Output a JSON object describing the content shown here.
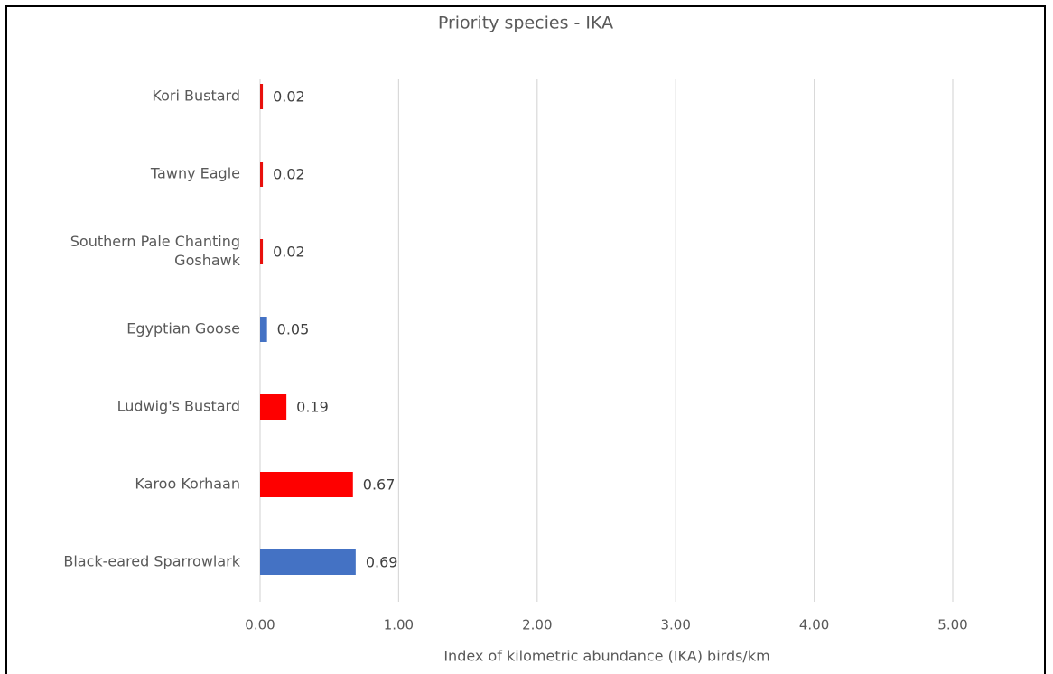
{
  "chart_data": {
    "type": "bar",
    "orientation": "horizontal",
    "title": "Priority species - IKA",
    "xlabel": "Index of kilometric abundance (IKA) birds/km",
    "ylabel": "",
    "xlim": [
      0,
      5
    ],
    "x_ticks": [
      "0.00",
      "1.00",
      "2.00",
      "3.00",
      "4.00",
      "5.00"
    ],
    "grid": true,
    "legend": "none",
    "categories": [
      [
        "Kori Bustard"
      ],
      [
        "Tawny Eagle"
      ],
      [
        "Southern Pale Chanting",
        "Goshawk"
      ],
      [
        "Egyptian Goose"
      ],
      [
        "Ludwig's Bustard"
      ],
      [
        "Karoo Korhaan"
      ],
      [
        "Black-eared Sparrowlark"
      ]
    ],
    "values": [
      0.02,
      0.02,
      0.02,
      0.05,
      0.19,
      0.67,
      0.69
    ],
    "value_labels": [
      "0.02",
      "0.02",
      "0.02",
      "0.05",
      "0.19",
      "0.67",
      "0.69"
    ],
    "bar_colors": [
      "#e8100c",
      "#e8100c",
      "#e8100c",
      "#4472c4",
      "#fe0000",
      "#fe0000",
      "#4472c4"
    ]
  }
}
